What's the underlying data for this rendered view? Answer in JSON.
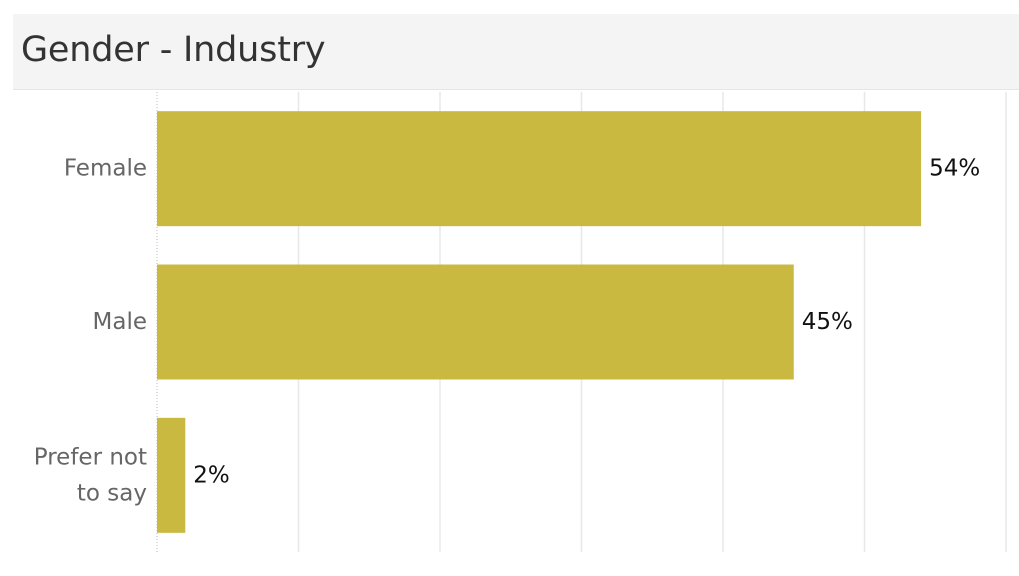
{
  "title": "Gender - Industry",
  "colors": {
    "bar": "#c9b940",
    "grid": "#e8e8e8",
    "axis": "#bdbdbd",
    "title_bg": "#f4f4f4",
    "category_text": "#666666",
    "value_text": "#111111"
  },
  "chart_data": {
    "type": "bar",
    "orientation": "horizontal",
    "title": "Gender - Industry",
    "categories": [
      [
        "Female"
      ],
      [
        "Male"
      ],
      [
        "Prefer not",
        "to say"
      ]
    ],
    "values": [
      54,
      45,
      2
    ],
    "value_labels": [
      "54%",
      "45%",
      "2%"
    ],
    "unit": "%",
    "xlim": [
      0,
      60
    ],
    "grid": true,
    "legend": false
  }
}
